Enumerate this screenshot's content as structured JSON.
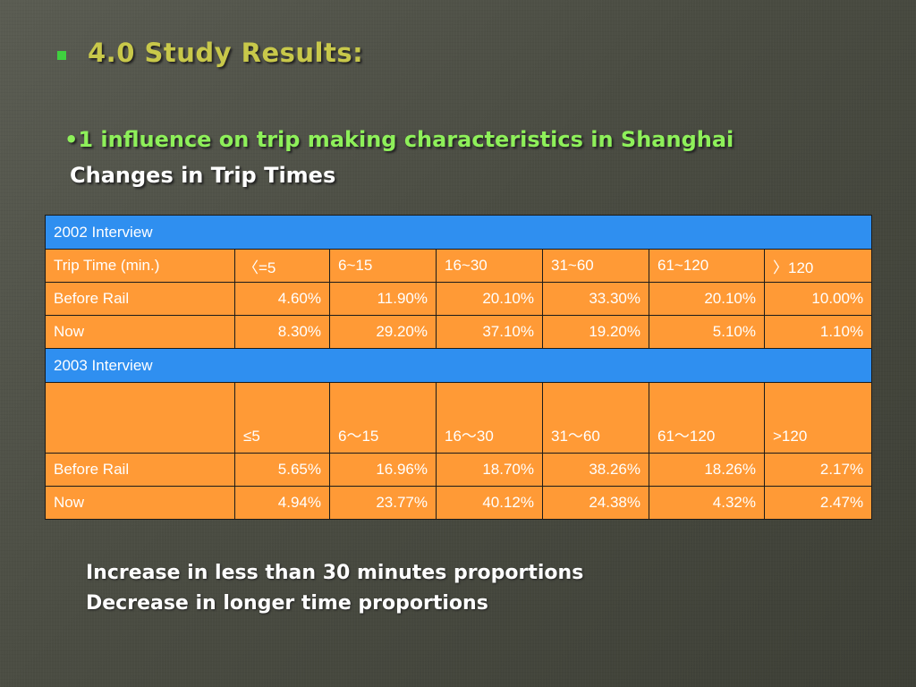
{
  "title_section": {
    "title": "4.0 Study Results:",
    "subheading": "•1  influence on trip making characteristics in Shanghai",
    "subtitle": "Changes in Trip Times"
  },
  "colors": {
    "title": "#c8c84a",
    "subheading": "#8ef05a",
    "section_header": "#2f8ff0",
    "cell": "#ff9a36"
  },
  "table": {
    "sections": [
      {
        "title": "2002 Interview",
        "header": [
          "Trip Time (min.)",
          "〈=5",
          "6~15",
          "16~30",
          "31~60",
          "61~120",
          "〉120"
        ],
        "rows": [
          [
            "Before Rail",
            "4.60%",
            "11.90%",
            "20.10%",
            "33.30%",
            "20.10%",
            "10.00%"
          ],
          [
            "Now",
            "8.30%",
            "29.20%",
            "37.10%",
            "19.20%",
            "5.10%",
            "1.10%"
          ]
        ]
      },
      {
        "title": "2003 Interview",
        "header": [
          "",
          "≤5",
          "6～15",
          "16～30",
          "31～60",
          "61～120",
          ">120"
        ],
        "rows": [
          [
            "Before Rail",
            "5.65%",
            "16.96%",
            "18.70%",
            "38.26%",
            "18.26%",
            "2.17%"
          ],
          [
            "Now",
            "4.94%",
            "23.77%",
            "40.12%",
            "24.38%",
            "4.32%",
            "2.47%"
          ]
        ]
      }
    ]
  },
  "notes": [
    "Increase in less than 30 minutes proportions",
    "Decrease in longer time proportions"
  ]
}
